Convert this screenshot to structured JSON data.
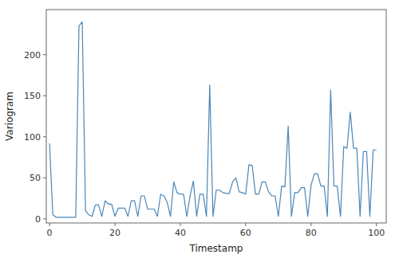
{
  "chart_data": {
    "type": "line",
    "x": [
      0,
      1,
      2,
      3,
      4,
      5,
      6,
      7,
      8,
      9,
      10,
      11,
      12,
      13,
      14,
      15,
      16,
      17,
      18,
      19,
      20,
      21,
      22,
      23,
      24,
      25,
      26,
      27,
      28,
      29,
      30,
      31,
      32,
      33,
      34,
      35,
      36,
      37,
      38,
      39,
      40,
      41,
      42,
      43,
      44,
      45,
      46,
      47,
      48,
      49,
      50,
      51,
      52,
      53,
      54,
      55,
      56,
      57,
      58,
      59,
      60,
      61,
      62,
      63,
      64,
      65,
      66,
      67,
      68,
      69,
      70,
      71,
      72,
      73,
      74,
      75,
      76,
      77,
      78,
      79,
      80,
      81,
      82,
      83,
      84,
      85,
      86,
      87,
      88,
      89,
      90,
      91,
      92,
      93,
      94,
      95,
      96,
      97,
      98,
      99,
      100
    ],
    "values": [
      92,
      5,
      2,
      2,
      2,
      2,
      2,
      2,
      2,
      235,
      240,
      10,
      5,
      3,
      17,
      17,
      3,
      22,
      18,
      18,
      3,
      13,
      13,
      13,
      3,
      22,
      22,
      3,
      28,
      28,
      12,
      12,
      12,
      3,
      30,
      28,
      20,
      3,
      45,
      32,
      30,
      30,
      3,
      28,
      46,
      3,
      30,
      30,
      3,
      163,
      3,
      35,
      35,
      32,
      31,
      31,
      45,
      50,
      33,
      32,
      30,
      66,
      65,
      30,
      30,
      45,
      45,
      33,
      28,
      28,
      3,
      40,
      39,
      113,
      3,
      32,
      32,
      38,
      38,
      3,
      41,
      55,
      55,
      40,
      40,
      3,
      157,
      40,
      40,
      3,
      88,
      86,
      130,
      86,
      86,
      3,
      82,
      82,
      3,
      84,
      84
    ],
    "color": "#4a86b8",
    "xlabel": "Timestamp",
    "ylabel": "Variogram",
    "xlim": [
      -1,
      103
    ],
    "ylim": [
      -5,
      255
    ],
    "xticks": [
      0,
      20,
      40,
      60,
      80,
      100
    ],
    "yticks": [
      0,
      50,
      100,
      150,
      200
    ],
    "grid": false
  }
}
